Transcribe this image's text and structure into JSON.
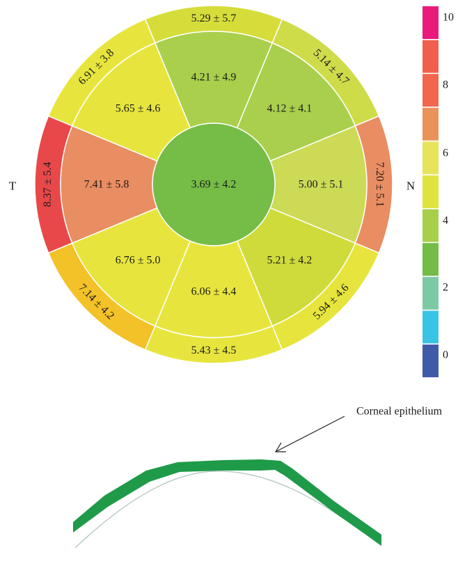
{
  "side_labels": {
    "temporal": "T",
    "nasal": "N"
  },
  "center": {
    "value": "3.69 ± 4.2",
    "color": "#76bd47"
  },
  "inner_ring": [
    {
      "id": "superior",
      "value": "4.21 ± 4.9",
      "color": "#a9cf4c"
    },
    {
      "id": "superior-nasal",
      "value": "4.12 ± 4.1",
      "color": "#a9cf4c"
    },
    {
      "id": "nasal",
      "value": "5.00 ± 5.1",
      "color": "#cdda56"
    },
    {
      "id": "inferior-nasal",
      "value": "5.21 ± 4.2",
      "color": "#cfdb3a"
    },
    {
      "id": "inferior",
      "value": "6.06 ± 4.4",
      "color": "#e7e53d"
    },
    {
      "id": "inferior-temporal",
      "value": "6.76 ± 5.0",
      "color": "#e7e53d"
    },
    {
      "id": "temporal",
      "value": "7.41 ± 5.8",
      "color": "#e98d62"
    },
    {
      "id": "superior-temporal",
      "value": "5.65 ± 4.6",
      "color": "#e7e53d"
    }
  ],
  "outer_ring": [
    {
      "id": "superior",
      "value": "5.29 ± 5.7",
      "color": "#d6dd3a"
    },
    {
      "id": "superior-nasal",
      "value": "5.14 ± 4.7",
      "color": "#cedc4a"
    },
    {
      "id": "nasal",
      "value": "7.20 ± 5.1",
      "color": "#e98d62"
    },
    {
      "id": "inferior-nasal",
      "value": "5.94 ± 4.6",
      "color": "#e7e53d"
    },
    {
      "id": "inferior",
      "value": "5.43 ± 4.5",
      "color": "#e7e53d"
    },
    {
      "id": "inferior-temporal",
      "value": "7.14 ± 4.2",
      "color": "#f3c128"
    },
    {
      "id": "temporal",
      "value": "8.37 ± 5.4",
      "color": "#e84849"
    },
    {
      "id": "superior-temporal",
      "value": "6.91 ± 3.8",
      "color": "#e7e53d"
    }
  ],
  "legend": {
    "colors_top_to_bottom": [
      "#ea1a7d",
      "#f05e4e",
      "#f0674d",
      "#e9935a",
      "#e6e45a",
      "#dfe33e",
      "#a7cf4c",
      "#73bc45",
      "#7dc9a5",
      "#3bc3e6",
      "#3f5ba8"
    ],
    "labels": [
      "10",
      "8",
      "6",
      "4",
      "2",
      "0"
    ]
  },
  "annotation": "Corneal epithelium",
  "colors": {
    "epithelium": "#1f9a49",
    "cornea_line": "#b8ccc6",
    "border": "#ffffff"
  }
}
